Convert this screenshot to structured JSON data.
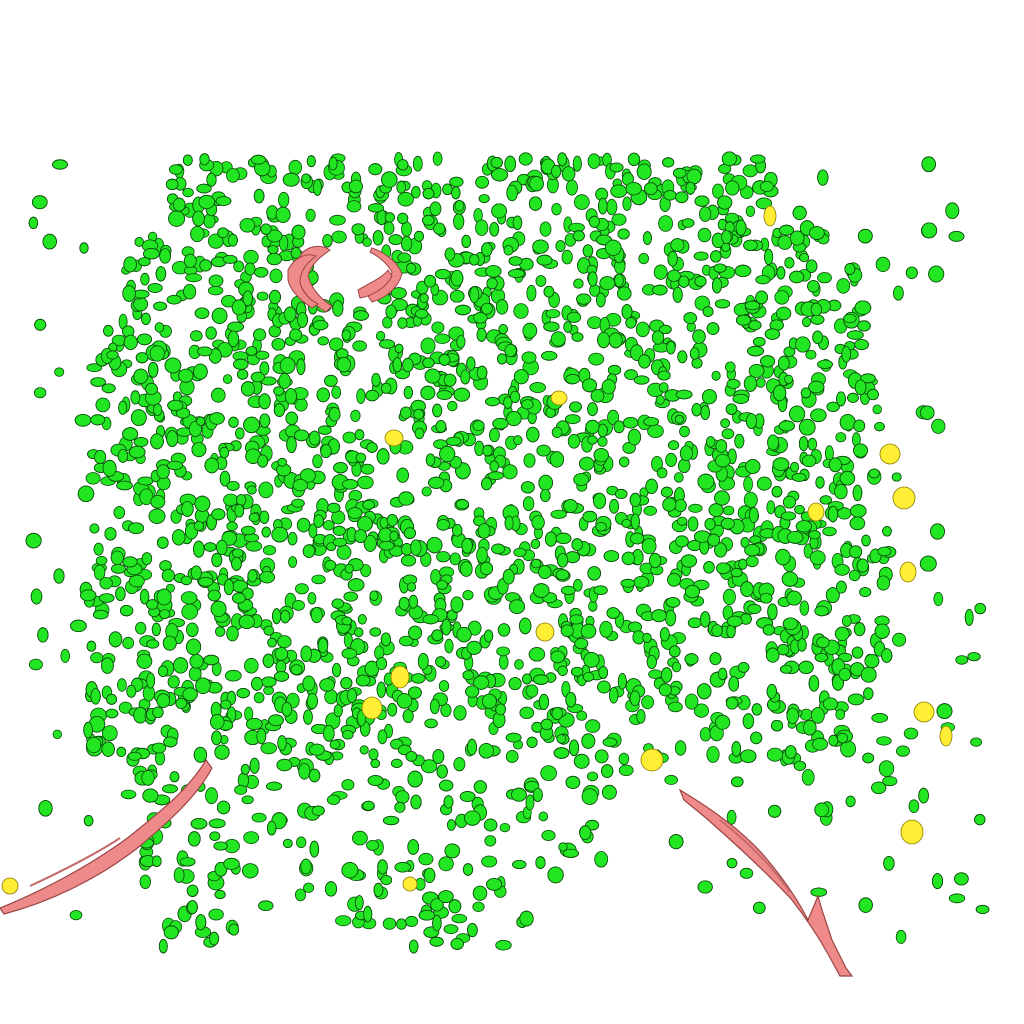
{
  "scene": {
    "background": "#ffffff",
    "cell_fill": "#22e622",
    "cell_stroke": "#0a4a0a",
    "marker_fill": "#ffee33",
    "marker_stroke": "#8a7a00",
    "vessel_fill": "#ef8a8a",
    "vessel_stroke": "#9a4444"
  },
  "layers": [
    {
      "name": "cells",
      "icon": "green-blob-icon"
    },
    {
      "name": "markers",
      "icon": "yellow-blob-icon"
    },
    {
      "name": "vessels",
      "icon": "pink-tube-icon"
    }
  ]
}
